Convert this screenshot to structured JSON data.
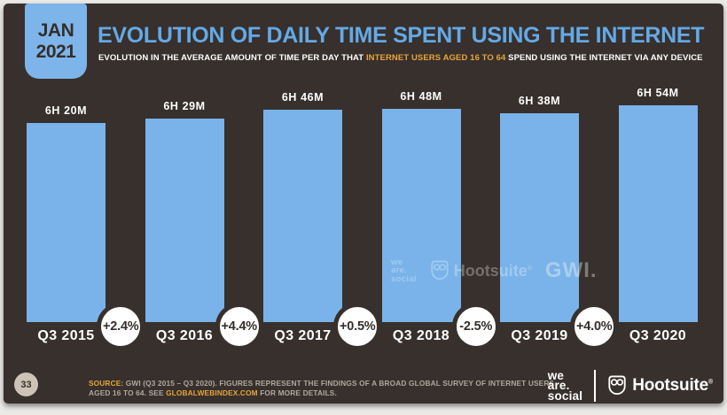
{
  "header": {
    "date_badge": {
      "line1": "JAN",
      "line2": "2021"
    },
    "title": "EVOLUTION OF DAILY TIME SPENT USING THE INTERNET",
    "subtitle_prefix": "EVOLUTION IN THE AVERAGE AMOUNT OF TIME PER DAY THAT ",
    "subtitle_highlight": "INTERNET USERS AGED 16 TO 64",
    "subtitle_suffix": " SPEND USING THE INTERNET VIA ANY DEVICE"
  },
  "chart_data": {
    "type": "bar",
    "title": "Evolution of daily time spent using the internet",
    "categories": [
      "Q3 2015",
      "Q3 2016",
      "Q3 2017",
      "Q3 2018",
      "Q3 2019",
      "Q3 2020"
    ],
    "values": [
      380,
      389,
      406,
      408,
      398,
      414
    ],
    "value_labels": [
      "6H 20M",
      "6H 29M",
      "6H 46M",
      "6H 48M",
      "6H 38M",
      "6H 54M"
    ],
    "deltas": [
      "+2.4%",
      "+4.4%",
      "+0.5%",
      "-2.5%",
      "+4.0%"
    ],
    "unit": "minutes per day",
    "xlabel": "",
    "ylabel": "Daily time spent using the internet",
    "ylim": [
      0,
      414
    ],
    "grid": false,
    "legend": false,
    "bar_color": "#79b3e9"
  },
  "watermarks": {
    "we_are_social": [
      "we",
      "are.",
      "social"
    ],
    "hootsuite": "Hootsuite",
    "reg_mark": "®",
    "gwi": "GWI."
  },
  "footer": {
    "page_number": "33",
    "source_label": "SOURCE:",
    "source_pre": " GWI (Q3 2015 – Q3 2020). FIGURES REPRESENT THE FINDINGS OF A BROAD GLOBAL SURVEY OF INTERNET USERS AGED 16 TO 64. SEE ",
    "source_link": "GLOBALWEBINDEX.COM",
    "source_post": " FOR MORE DETAILS.",
    "we_are_social": [
      "we",
      "are.",
      "social"
    ],
    "hootsuite": "Hootsuite"
  },
  "colors": {
    "slide_background": "#37302c",
    "bar": "#79b3e9",
    "title_blue": "#64a9e6",
    "badge_blue": "#7db5ea",
    "highlight_orange": "#e8a33c",
    "page_circle": "#cdc3b6"
  }
}
